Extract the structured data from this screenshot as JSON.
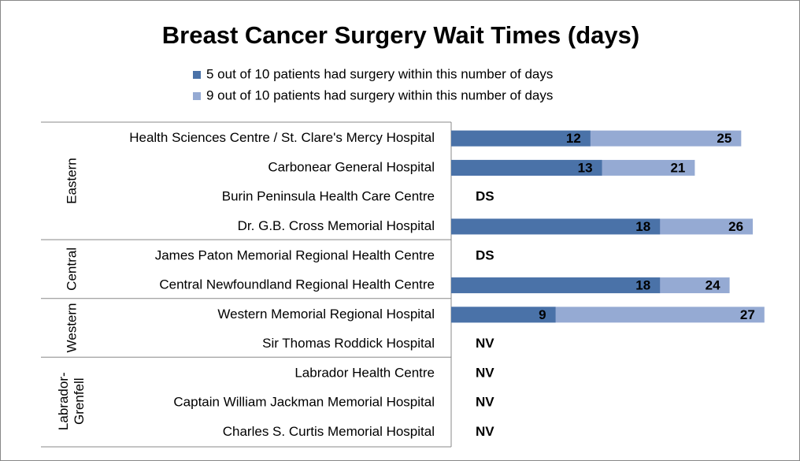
{
  "chart_data": {
    "type": "bar",
    "orientation": "horizontal",
    "overlap": true,
    "title": "Breast Cancer Surgery Wait Times (days)",
    "groups": [
      {
        "name": "Eastern",
        "categories": [
          "Health Sciences Centre / St. Clare's Mercy Hospital",
          "Carbonear General Hospital",
          "Burin Peninsula Health Care Centre",
          "Dr. G.B. Cross Memorial Hospital"
        ]
      },
      {
        "name": "Central",
        "categories": [
          "James Paton Memorial Regional Health Centre",
          "Central Newfoundland Regional Health Centre"
        ]
      },
      {
        "name": "Western",
        "categories": [
          "Western Memorial Regional Hospital",
          "Sir Thomas Roddick Hospital"
        ]
      },
      {
        "name": "Labrador-Grenfell",
        "categories": [
          "Labrador Health Centre",
          "Captain William Jackman Memorial Hospital",
          "Charles S. Curtis Memorial Hospital"
        ]
      }
    ],
    "series": [
      {
        "name": "9 out of 10 patients had surgery within this number of days",
        "color": "#95aad3",
        "values": [
          25,
          21,
          null,
          26,
          null,
          24,
          27,
          null,
          null,
          null,
          null
        ]
      },
      {
        "name": "5 out of 10 patients had surgery within this number of days",
        "color": "#4a72a8",
        "values": [
          12,
          13,
          null,
          18,
          null,
          18,
          9,
          null,
          null,
          null,
          null
        ],
        "value_labels": [
          null,
          null,
          "DS",
          null,
          "DS",
          null,
          null,
          "NV",
          "NV",
          "NV",
          "NV"
        ]
      }
    ],
    "xlim": [
      0,
      30
    ]
  }
}
